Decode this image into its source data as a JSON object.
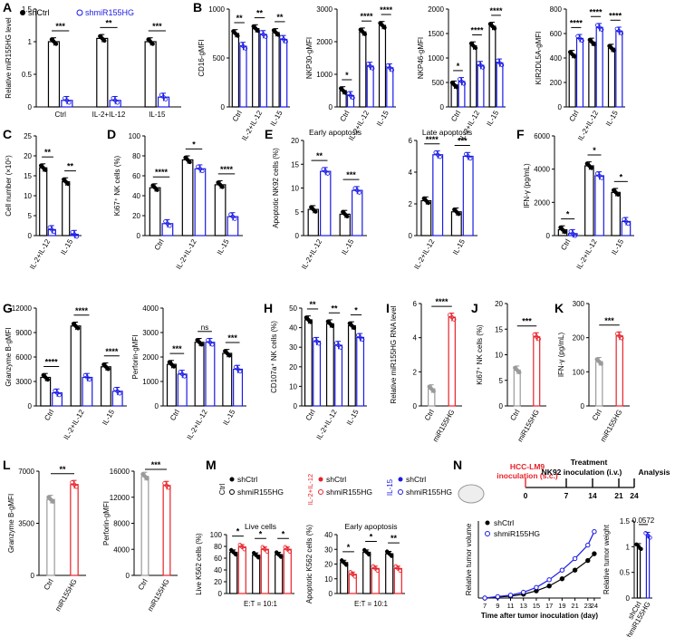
{
  "colors": {
    "ctrl": "#000000",
    "kd": "#1a1ae6",
    "oe": "#e8212a",
    "ctrl_bar_oe": "#9a9a9a",
    "arrow": "#e8212a"
  },
  "panel_letters": [
    "A",
    "B",
    "C",
    "D",
    "E",
    "F",
    "G",
    "H",
    "I",
    "J",
    "K",
    "L",
    "M",
    "N"
  ],
  "legends": {
    "a": {
      "ctrl": "shCtrl",
      "kd": "shmiR155HG"
    },
    "m": {
      "ctrl_sh": "shCtrl",
      "ctrl_kd": "shmiR155HG",
      "il212_tag": "IL-2+IL-12",
      "il15_tag": "IL-15",
      "il212_sh": "shCtrl",
      "il212_kd": "shmiR155HG",
      "il15_sh": "shCtrl",
      "il15_kd": "shmiR155HG",
      "ctrl_tag": "Ctrl"
    },
    "n": {
      "ctrl": "shCtrl",
      "kd": "shmiR155HG"
    }
  },
  "timeline": {
    "cells": "HCC-LM9",
    "inoculation": "inoculation (s.c.)",
    "treatment": "Treatment",
    "nk": "NK92 inoculation (i.v.)",
    "analysis": "Analysis",
    "days": [
      "0",
      "7",
      "14",
      "21",
      "24"
    ]
  },
  "chart_data": [
    {
      "id": "A",
      "type": "bar",
      "ylabel": "Relative miR155HG level",
      "ylim": [
        0,
        1.5
      ],
      "yticks": [
        0,
        0.5,
        1.0,
        1.5
      ],
      "categories": [
        "Ctrl",
        "IL-2+IL-12",
        "IL-15"
      ],
      "xrot": false,
      "series": [
        {
          "name": "shCtrl",
          "values": [
            1.0,
            1.05,
            1.0
          ]
        },
        {
          "name": "shmiR155HG",
          "values": [
            0.1,
            0.1,
            0.15
          ]
        }
      ],
      "sig": [
        "***",
        "**",
        "***"
      ]
    },
    {
      "id": "B1",
      "type": "bar",
      "ylabel": "CD16-gMFI",
      "ylim": [
        0,
        1000
      ],
      "yticks": [
        0,
        500,
        1000
      ],
      "categories": [
        "Ctrl",
        "IL-2+IL-12",
        "IL-15"
      ],
      "xrot": true,
      "series": [
        {
          "values": [
            750,
            800,
            760
          ]
        },
        {
          "values": [
            620,
            740,
            690
          ]
        }
      ],
      "sig": [
        "**",
        "**",
        "**"
      ]
    },
    {
      "id": "B2",
      "type": "bar",
      "ylabel": "NKP30-gMFI",
      "ylim": [
        0,
        3000
      ],
      "yticks": [
        0,
        1000,
        2000,
        3000
      ],
      "categories": [
        "Ctrl",
        "IL-2+IL-12",
        "IL-15"
      ],
      "xrot": true,
      "series": [
        {
          "values": [
            500,
            2300,
            2500
          ]
        },
        {
          "values": [
            350,
            1250,
            1200
          ]
        }
      ],
      "sig": [
        "*",
        "****",
        "****"
      ]
    },
    {
      "id": "B3",
      "type": "bar",
      "ylabel": "NKP46-gMFI",
      "ylim": [
        0,
        2000
      ],
      "yticks": [
        0,
        500,
        1000,
        1500,
        2000
      ],
      "categories": [
        "Ctrl",
        "IL-2+IL-12",
        "IL-15"
      ],
      "xrot": true,
      "series": [
        {
          "values": [
            450,
            1250,
            1650
          ]
        },
        {
          "values": [
            520,
            850,
            900
          ]
        }
      ],
      "sig": [
        "*",
        "****",
        "****"
      ]
    },
    {
      "id": "B4",
      "type": "bar",
      "ylabel": "KIR2DL5A-gMFI",
      "ylim": [
        0,
        800
      ],
      "yticks": [
        0,
        200,
        400,
        600,
        800
      ],
      "categories": [
        "Ctrl",
        "IL-2+IL-12",
        "IL-15"
      ],
      "xrot": true,
      "series": [
        {
          "values": [
            430,
            530,
            480
          ]
        },
        {
          "values": [
            560,
            650,
            620
          ]
        }
      ],
      "sig": [
        "****",
        "****",
        "****"
      ]
    },
    {
      "id": "C",
      "type": "bar",
      "ylabel": "Cell number (×10⁵)",
      "ylim": [
        0,
        25
      ],
      "yticks": [
        0,
        5,
        10,
        15,
        20,
        25
      ],
      "categories": [
        "IL-2+IL-12",
        "IL-15"
      ],
      "xrot": true,
      "series": [
        {
          "values": [
            17,
            13.5
          ]
        },
        {
          "values": [
            1.5,
            0.3
          ]
        }
      ],
      "sig": [
        "**",
        "**"
      ]
    },
    {
      "id": "D",
      "type": "bar",
      "ylabel": "Ki67⁺ NK cells (%)",
      "ylim": [
        0,
        100
      ],
      "yticks": [
        0,
        20,
        40,
        60,
        80,
        100
      ],
      "categories": [
        "Ctrl",
        "IL-2+IL-12",
        "IL-15"
      ],
      "xrot": true,
      "series": [
        {
          "values": [
            48,
            76,
            51
          ]
        },
        {
          "values": [
            12,
            67,
            19
          ]
        }
      ],
      "sig": [
        "****",
        "*",
        "****"
      ]
    },
    {
      "id": "E1",
      "type": "bar",
      "title": "Early apoptosis",
      "ylabel": "Apoptotic NK92 cells (%)",
      "ylim": [
        0,
        20
      ],
      "yticks": [
        0,
        5,
        10,
        15,
        20
      ],
      "categories": [
        "IL-2+IL-12",
        "IL-15"
      ],
      "xrot": true,
      "series": [
        {
          "values": [
            5.5,
            4.5
          ]
        },
        {
          "values": [
            13.5,
            9.5
          ]
        }
      ],
      "sig": [
        "**",
        "***"
      ]
    },
    {
      "id": "E2",
      "type": "bar",
      "title": "Late apoptosis",
      "ylabel": "",
      "ylim": [
        0,
        6
      ],
      "yticks": [
        0,
        2,
        4,
        6
      ],
      "categories": [
        "IL-2+IL-12",
        "IL-15"
      ],
      "xrot": true,
      "series": [
        {
          "values": [
            2.2,
            1.5
          ]
        },
        {
          "values": [
            5.1,
            5.0
          ]
        }
      ],
      "sig": [
        "****",
        "***"
      ]
    },
    {
      "id": "F",
      "type": "bar",
      "ylabel": "IFN-γ (pg/mL)",
      "ylim": [
        0,
        6000
      ],
      "yticks": [
        0,
        2000,
        4000,
        6000
      ],
      "categories": [
        "Ctrl",
        "IL-2+IL-12",
        "IL-15"
      ],
      "xrot": true,
      "series": [
        {
          "values": [
            350,
            4200,
            2600
          ]
        },
        {
          "values": [
            120,
            3600,
            850
          ]
        }
      ],
      "sig": [
        "*",
        "*",
        "*"
      ]
    },
    {
      "id": "G1",
      "type": "bar",
      "ylabel": "Granzyme B-gMFI",
      "ylim": [
        0,
        12000
      ],
      "yticks": [
        0,
        3000,
        6000,
        9000,
        12000
      ],
      "categories": [
        "Ctrl",
        "IL-2+IL-12",
        "IL-15"
      ],
      "xrot": true,
      "series": [
        {
          "values": [
            3500,
            9800,
            4800
          ]
        },
        {
          "values": [
            1600,
            3500,
            1800
          ]
        }
      ],
      "sig": [
        "****",
        "****",
        "****"
      ]
    },
    {
      "id": "G2",
      "type": "bar",
      "ylabel": "Perforin-gMFI",
      "ylim": [
        0,
        4000
      ],
      "yticks": [
        0,
        1000,
        2000,
        3000,
        4000
      ],
      "categories": [
        "Ctrl",
        "IL-2+IL-12",
        "IL-15"
      ],
      "xrot": true,
      "series": [
        {
          "values": [
            1700,
            2600,
            2150
          ]
        },
        {
          "values": [
            1300,
            2600,
            1500
          ]
        }
      ],
      "sig": [
        "***",
        "ns",
        "***"
      ]
    },
    {
      "id": "H",
      "type": "bar",
      "ylabel": "CD107a⁺ NK cells (%)",
      "ylim": [
        0,
        50
      ],
      "yticks": [
        0,
        10,
        20,
        30,
        40,
        50
      ],
      "categories": [
        "Ctrl",
        "IL-2+IL-12",
        "IL-15"
      ],
      "xrot": true,
      "series": [
        {
          "values": [
            44,
            42,
            41
          ]
        },
        {
          "values": [
            33,
            31,
            35
          ]
        }
      ],
      "sig": [
        "**",
        "**",
        "*"
      ]
    },
    {
      "id": "I",
      "type": "bar",
      "ylabel": "Relative miR155HG RNA level",
      "ylim": [
        0,
        6
      ],
      "yticks": [
        0,
        2,
        4,
        6
      ],
      "categories": [
        "Ctrl",
        "miR155HG"
      ],
      "xrot": true,
      "oe": true,
      "series": [
        {
          "values": [
            1.0,
            5.2
          ]
        }
      ],
      "sig": [
        "****"
      ]
    },
    {
      "id": "J",
      "type": "bar",
      "ylabel": "Ki67⁺ NK cells (%)",
      "ylim": [
        0,
        20
      ],
      "yticks": [
        0,
        5,
        10,
        15,
        20
      ],
      "categories": [
        "Ctrl",
        "miR155HG"
      ],
      "xrot": true,
      "oe": true,
      "series": [
        {
          "values": [
            7,
            13.5
          ]
        }
      ],
      "sig": [
        "***"
      ]
    },
    {
      "id": "K",
      "type": "bar",
      "ylabel": "IFN-γ (pg/mL)",
      "ylim": [
        0,
        300
      ],
      "yticks": [
        0,
        100,
        200,
        300
      ],
      "categories": [
        "Ctrl",
        "miR155HG"
      ],
      "xrot": true,
      "oe": true,
      "series": [
        {
          "values": [
            130,
            205
          ]
        }
      ],
      "sig": [
        "***"
      ]
    },
    {
      "id": "L1",
      "type": "bar",
      "ylabel": "Granzyme B-gMFI",
      "ylim": [
        0,
        7000
      ],
      "yticks": [
        0,
        3500,
        7000
      ],
      "categories": [
        "Ctrl",
        "miR155HG"
      ],
      "xrot": true,
      "oe": true,
      "series": [
        {
          "values": [
            5100,
            6100
          ]
        }
      ],
      "sig": [
        "**"
      ]
    },
    {
      "id": "L2",
      "type": "bar",
      "ylabel": "Perforin-gMFI",
      "ylim": [
        0,
        16000
      ],
      "yticks": [
        0,
        4000,
        8000,
        12000,
        16000
      ],
      "categories": [
        "Ctrl",
        "miR155HG"
      ],
      "xrot": true,
      "oe": true,
      "series": [
        {
          "values": [
            15200,
            13800
          ]
        }
      ],
      "sig": [
        "***"
      ]
    },
    {
      "id": "M1",
      "type": "bar",
      "title": "Live cells",
      "ylabel": "Live K562 cells (%)",
      "ylim": [
        0,
        100
      ],
      "yticks": [
        0,
        20,
        40,
        60,
        80,
        100
      ],
      "xlabel": "E:T = 10:1",
      "series": [
        {
          "values": [
            70,
            79,
            65,
            75,
            66,
            75
          ]
        }
      ],
      "sig": [
        "*",
        "*",
        "*"
      ]
    },
    {
      "id": "M2",
      "type": "bar",
      "title": "Early apoptosis",
      "ylabel": "Apoptotic K562 cells (%)",
      "ylim": [
        0,
        40
      ],
      "yticks": [
        0,
        10,
        20,
        30,
        40
      ],
      "xlabel": "E:T = 10:1",
      "series": [
        {
          "values": [
            21,
            13,
            28,
            17,
            27,
            17
          ]
        }
      ],
      "sig": [
        "*",
        "*",
        "**"
      ]
    },
    {
      "id": "N1",
      "type": "line",
      "ylabel": "Relative tumor volume",
      "xlabel": "Time after tumor inoculation (day)",
      "x": [
        7,
        9,
        11,
        13,
        15,
        17,
        19,
        21,
        23,
        24
      ],
      "ylim": [
        0,
        160
      ],
      "series": [
        {
          "name": "shCtrl",
          "values": [
            0,
            2,
            4,
            8,
            15,
            25,
            40,
            58,
            78,
            92
          ]
        },
        {
          "name": "shmiR155HG",
          "values": [
            0,
            3,
            6,
            12,
            22,
            38,
            58,
            82,
            110,
            138
          ]
        }
      ]
    },
    {
      "id": "N2",
      "type": "bar",
      "ylabel": "Relative tumor weight",
      "ylim": [
        0,
        1.5
      ],
      "yticks": [
        0,
        0.5,
        1.0,
        1.5
      ],
      "categories": [
        "shCtrl",
        "shmiR155HG"
      ],
      "xrot": true,
      "series": [
        {
          "values": [
            1.0,
            1.22
          ]
        }
      ],
      "sig": [
        "0.0572"
      ]
    }
  ]
}
